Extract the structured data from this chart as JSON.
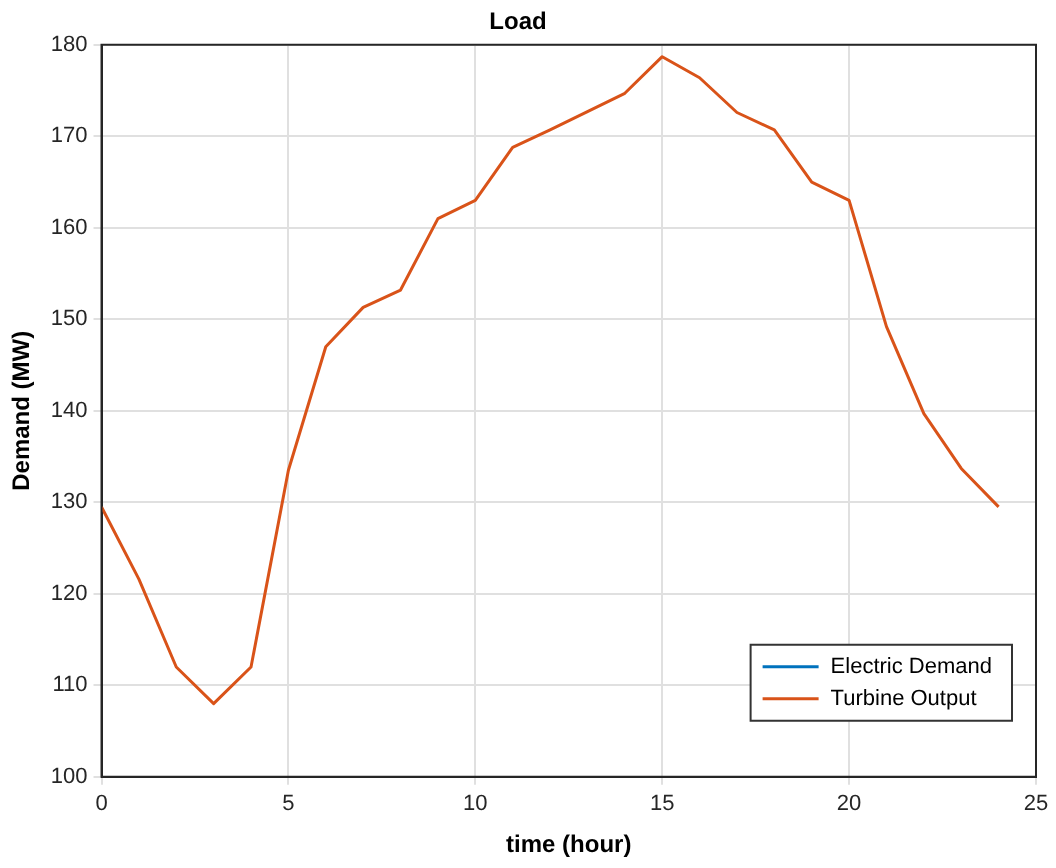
{
  "chart_data": {
    "type": "line",
    "title": "Load",
    "xlabel": "time (hour)",
    "ylabel": "Demand (MW)",
    "x": [
      0,
      1,
      2,
      3,
      4,
      5,
      6,
      7,
      8,
      9,
      10,
      11,
      12,
      13,
      14,
      15,
      16,
      17,
      18,
      19,
      20,
      21,
      22,
      23,
      24
    ],
    "series": [
      {
        "name": "Electric Demand",
        "color": "#0072bd",
        "values": [
          null,
          null,
          null,
          null,
          null,
          null,
          null,
          null,
          null,
          null,
          null,
          null,
          null,
          null,
          null,
          null,
          null,
          null,
          null,
          null,
          null,
          null,
          null,
          null,
          null
        ]
      },
      {
        "name": "Turbine Output",
        "color": "#d95319",
        "values": [
          129.5,
          121.6,
          112,
          108,
          112,
          133.5,
          147,
          151.3,
          153.2,
          161,
          163,
          168.8,
          170.7,
          172.7,
          174.7,
          178.7,
          176.4,
          172.6,
          170.7,
          165,
          163,
          149.2,
          139.7,
          133.7,
          129.5
        ]
      }
    ],
    "xlim": [
      0,
      25
    ],
    "xticks": [
      0,
      5,
      10,
      15,
      20,
      25
    ],
    "ylim": [
      100,
      180
    ],
    "yticks": [
      100,
      110,
      120,
      130,
      140,
      150,
      160,
      170,
      180
    ],
    "grid": true,
    "legend": "bottom right",
    "marker": "none",
    "line_style": "solid"
  }
}
